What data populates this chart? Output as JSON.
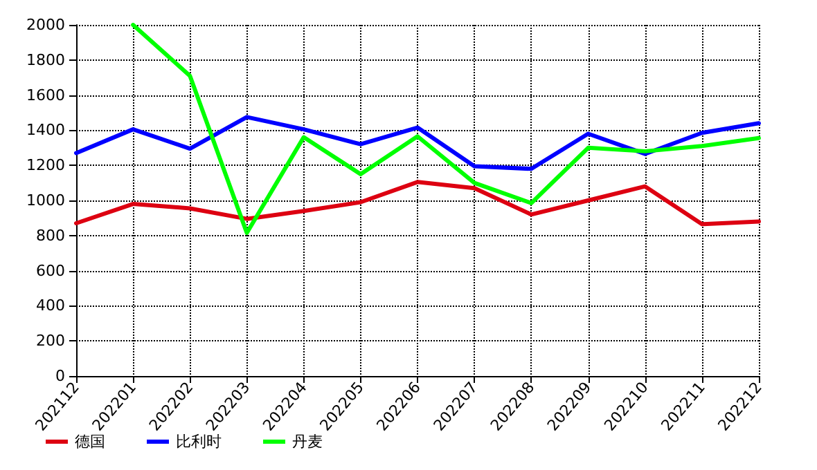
{
  "chart_data": {
    "type": "line",
    "categories": [
      "202112",
      "202201",
      "202202",
      "202203",
      "202204",
      "202205",
      "202206",
      "202207",
      "202208",
      "202209",
      "202210",
      "202211",
      "202212"
    ],
    "series": [
      {
        "name": "德国",
        "color": "#dd0011",
        "values": [
          870,
          980,
          955,
          895,
          940,
          990,
          1105,
          1070,
          920,
          1000,
          1080,
          865,
          880
        ]
      },
      {
        "name": "比利时",
        "color": "#0000ff",
        "values": [
          1270,
          1405,
          1295,
          1475,
          1405,
          1320,
          1415,
          1195,
          1180,
          1380,
          1265,
          1385,
          1440
        ]
      },
      {
        "name": "丹麦",
        "color": "#00ff00",
        "values": [
          null,
          2000,
          1710,
          815,
          1360,
          1150,
          1365,
          1100,
          985,
          1300,
          1280,
          1310,
          1355
        ]
      }
    ],
    "ylim": [
      0,
      2000
    ],
    "yticks": [
      0,
      200,
      400,
      600,
      800,
      1000,
      1200,
      1400,
      1600,
      1800,
      2000
    ],
    "grid": true,
    "legend": "bottom left",
    "marker": "none",
    "line_style": "solid"
  }
}
